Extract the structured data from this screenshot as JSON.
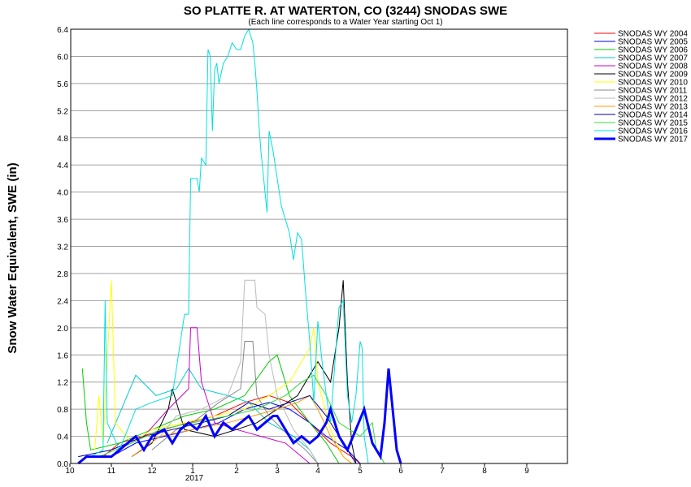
{
  "chart_data": {
    "type": "line",
    "title": "SO PLATTE R. AT WATERTON, CO (3244) SNODAS SWE",
    "subtitle": "(Each line corresponds to a Water Year starting Oct 1)",
    "ylabel": "Snow Water Equivalent, SWE (in)",
    "xlabel": "",
    "ylim": [
      0,
      6.4
    ],
    "xlim": [
      10,
      9.9
    ],
    "y_ticks": [
      "0.0",
      "0.4",
      "0.8",
      "1.2",
      "1.6",
      "2.0",
      "2.4",
      "2.8",
      "3.2",
      "3.6",
      "4.0",
      "4.4",
      "4.8",
      "5.2",
      "5.6",
      "6.0",
      "6.4"
    ],
    "x_ticks": [
      "10",
      "11",
      "12",
      "1",
      "2",
      "3",
      "4",
      "5",
      "6",
      "7",
      "8",
      "9"
    ],
    "x_year_label": "2017",
    "grid": "horizontal",
    "legend_position": "right",
    "series": [
      {
        "name": "SNODAS WY 2004",
        "color": "#ff0000",
        "width": 1,
        "points": [
          [
            10.8,
            0.1
          ],
          [
            11.2,
            0.3
          ],
          [
            12.3,
            0.5
          ],
          [
            12.9,
            0.6
          ],
          [
            1.5,
            0.7
          ],
          [
            2.2,
            0.9
          ],
          [
            2.8,
            1.0
          ],
          [
            3.3,
            0.9
          ],
          [
            3.8,
            0.6
          ],
          [
            4.3,
            0.3
          ],
          [
            4.8,
            0.1
          ],
          [
            5.0,
            0
          ]
        ]
      },
      {
        "name": "SNODAS WY 2005",
        "color": "#0000ff",
        "width": 1,
        "points": [
          [
            11.0,
            0.1
          ],
          [
            11.6,
            0.3
          ],
          [
            12.3,
            0.4
          ],
          [
            1.0,
            0.5
          ],
          [
            1.6,
            0.6
          ],
          [
            2.2,
            0.8
          ],
          [
            2.8,
            0.9
          ],
          [
            3.3,
            0.8
          ],
          [
            3.8,
            0.6
          ],
          [
            4.2,
            0.4
          ],
          [
            4.7,
            0.2
          ],
          [
            5.0,
            0
          ]
        ]
      },
      {
        "name": "SNODAS WY 2006",
        "color": "#00cc00",
        "width": 1,
        "points": [
          [
            10.3,
            1.4
          ],
          [
            10.4,
            0.6
          ],
          [
            10.5,
            0.2
          ],
          [
            11.2,
            0.3
          ],
          [
            12.0,
            0.5
          ],
          [
            12.8,
            0.7
          ],
          [
            1.5,
            0.8
          ],
          [
            2.2,
            1.0
          ],
          [
            2.8,
            1.5
          ],
          [
            3.0,
            1.6
          ],
          [
            3.3,
            1.0
          ],
          [
            3.8,
            0.6
          ],
          [
            4.2,
            0.3
          ],
          [
            4.5,
            0
          ]
        ]
      },
      {
        "name": "SNODAS WY 2007",
        "color": "#00cccc",
        "width": 1,
        "points": [
          [
            10.9,
            0.3
          ],
          [
            11.6,
            1.3
          ],
          [
            12.1,
            1.0
          ],
          [
            12.6,
            1.1
          ],
          [
            12.9,
            1.4
          ],
          [
            1.2,
            1.1
          ],
          [
            1.8,
            1.0
          ],
          [
            2.3,
            0.9
          ],
          [
            2.8,
            0.6
          ],
          [
            3.4,
            0.4
          ],
          [
            3.8,
            0.2
          ],
          [
            4.0,
            0
          ]
        ]
      },
      {
        "name": "SNODAS WY 2008",
        "color": "#cc00cc",
        "width": 1,
        "points": [
          [
            11.0,
            0.2
          ],
          [
            11.8,
            0.4
          ],
          [
            12.4,
            0.8
          ],
          [
            12.9,
            1.1
          ],
          [
            12.95,
            2.0
          ],
          [
            1.1,
            2.0
          ],
          [
            1.2,
            1.2
          ],
          [
            1.5,
            0.6
          ],
          [
            2.0,
            0.5
          ],
          [
            2.6,
            0.4
          ],
          [
            3.2,
            0.3
          ],
          [
            3.6,
            0.1
          ],
          [
            3.8,
            0
          ]
        ]
      },
      {
        "name": "SNODAS WY 2009",
        "color": "#000000",
        "width": 1,
        "points": [
          [
            11.5,
            0.1
          ],
          [
            12.0,
            0.3
          ],
          [
            12.4,
            0.8
          ],
          [
            12.5,
            1.1
          ],
          [
            12.8,
            0.5
          ],
          [
            1.5,
            0.4
          ],
          [
            2.0,
            0.5
          ],
          [
            2.5,
            0.6
          ],
          [
            3.0,
            0.8
          ],
          [
            3.5,
            1.0
          ],
          [
            4.0,
            1.5
          ],
          [
            4.3,
            1.2
          ],
          [
            4.5,
            2.0
          ],
          [
            4.6,
            2.7
          ],
          [
            4.7,
            1.2
          ],
          [
            4.8,
            0.3
          ],
          [
            4.9,
            0
          ]
        ]
      },
      {
        "name": "SNODAS WY 2010",
        "color": "#ffff00",
        "width": 1,
        "points": [
          [
            10.6,
            0.2
          ],
          [
            10.7,
            1.0
          ],
          [
            10.8,
            0.3
          ],
          [
            11.0,
            2.7
          ],
          [
            11.1,
            0.6
          ],
          [
            11.5,
            0.3
          ],
          [
            12.0,
            0.5
          ],
          [
            12.8,
            0.6
          ],
          [
            1.5,
            0.7
          ],
          [
            2.2,
            0.8
          ],
          [
            2.8,
            1.0
          ],
          [
            3.3,
            1.2
          ],
          [
            3.8,
            1.7
          ],
          [
            3.9,
            2.0
          ],
          [
            4.0,
            1.2
          ],
          [
            4.3,
            0.5
          ],
          [
            4.6,
            0.1
          ],
          [
            4.8,
            0
          ]
        ]
      },
      {
        "name": "SNODAS WY 2011",
        "color": "#888888",
        "width": 1,
        "points": [
          [
            12.0,
            0.2
          ],
          [
            12.6,
            0.5
          ],
          [
            1.0,
            0.6
          ],
          [
            1.6,
            0.9
          ],
          [
            2.1,
            1.1
          ],
          [
            2.2,
            1.8
          ],
          [
            2.4,
            1.8
          ],
          [
            2.5,
            1.0
          ],
          [
            2.8,
            0.7
          ],
          [
            3.3,
            0.4
          ],
          [
            3.7,
            0.2
          ],
          [
            4.0,
            0
          ]
        ]
      },
      {
        "name": "SNODAS WY 2012",
        "color": "#bbbbbb",
        "width": 1,
        "points": [
          [
            12.2,
            0.4
          ],
          [
            12.6,
            0.7
          ],
          [
            1.2,
            0.8
          ],
          [
            1.8,
            1.0
          ],
          [
            2.1,
            1.5
          ],
          [
            2.2,
            2.7
          ],
          [
            2.45,
            2.7
          ],
          [
            2.5,
            2.3
          ],
          [
            2.7,
            2.2
          ],
          [
            2.8,
            1.6
          ],
          [
            3.0,
            1.0
          ],
          [
            3.4,
            0.5
          ],
          [
            3.8,
            0.2
          ],
          [
            4.0,
            0
          ]
        ]
      },
      {
        "name": "SNODAS WY 2013",
        "color": "#ff9900",
        "width": 1,
        "points": [
          [
            11.5,
            0.1
          ],
          [
            12.2,
            0.4
          ],
          [
            1.0,
            0.5
          ],
          [
            1.8,
            0.6
          ],
          [
            2.4,
            0.7
          ],
          [
            3.0,
            0.8
          ],
          [
            3.5,
            0.9
          ],
          [
            3.8,
            1.0
          ],
          [
            4.0,
            0.8
          ],
          [
            4.3,
            0.4
          ],
          [
            4.6,
            0.1
          ],
          [
            4.8,
            0
          ]
        ]
      },
      {
        "name": "SNODAS WY 2014",
        "color": "#000099",
        "width": 1,
        "points": [
          [
            10.2,
            0.1
          ],
          [
            11.0,
            0.2
          ],
          [
            11.8,
            0.4
          ],
          [
            12.5,
            0.5
          ],
          [
            1.2,
            0.6
          ],
          [
            1.8,
            0.7
          ],
          [
            2.3,
            0.9
          ],
          [
            2.8,
            0.8
          ],
          [
            3.3,
            0.9
          ],
          [
            3.8,
            1.0
          ],
          [
            4.2,
            0.7
          ],
          [
            4.6,
            0.3
          ],
          [
            4.9,
            0
          ]
        ]
      },
      {
        "name": "SNODAS WY 2015",
        "color": "#33dd33",
        "width": 1,
        "points": [
          [
            10.7,
            0.1
          ],
          [
            11.5,
            0.3
          ],
          [
            12.2,
            0.5
          ],
          [
            1.0,
            0.6
          ],
          [
            1.8,
            0.7
          ],
          [
            2.5,
            0.8
          ],
          [
            3.2,
            1.0
          ],
          [
            3.6,
            1.2
          ],
          [
            3.9,
            1.3
          ],
          [
            4.2,
            1.0
          ],
          [
            4.5,
            0.6
          ],
          [
            5.0,
            0.4
          ],
          [
            5.3,
            0.6
          ],
          [
            5.4,
            0.2
          ],
          [
            5.6,
            0
          ]
        ]
      },
      {
        "name": "SNODAS WY 2016",
        "color": "#00e0e0",
        "width": 1,
        "points": [
          [
            10.5,
            0.1
          ],
          [
            10.8,
            0.2
          ],
          [
            10.85,
            2.4
          ],
          [
            10.9,
            0.6
          ],
          [
            11.2,
            0.2
          ],
          [
            11.6,
            0.8
          ],
          [
            12.0,
            0.9
          ],
          [
            12.5,
            1.0
          ],
          [
            12.8,
            2.2
          ],
          [
            12.9,
            2.2
          ],
          [
            12.95,
            4.2
          ],
          [
            1.1,
            4.2
          ],
          [
            1.15,
            4.0
          ],
          [
            1.2,
            4.5
          ],
          [
            1.3,
            4.4
          ],
          [
            1.35,
            6.1
          ],
          [
            1.4,
            6.0
          ],
          [
            1.45,
            4.9
          ],
          [
            1.5,
            5.8
          ],
          [
            1.55,
            5.9
          ],
          [
            1.6,
            5.6
          ],
          [
            1.7,
            5.9
          ],
          [
            1.8,
            6.0
          ],
          [
            1.9,
            6.2
          ],
          [
            2.0,
            6.1
          ],
          [
            2.1,
            6.1
          ],
          [
            2.15,
            6.2
          ],
          [
            2.2,
            6.3
          ],
          [
            2.3,
            6.4
          ],
          [
            2.35,
            6.3
          ],
          [
            2.4,
            6.2
          ],
          [
            2.45,
            5.9
          ],
          [
            2.5,
            5.5
          ],
          [
            2.55,
            5.0
          ],
          [
            2.6,
            4.6
          ],
          [
            2.7,
            4.0
          ],
          [
            2.75,
            3.7
          ],
          [
            2.8,
            4.9
          ],
          [
            2.9,
            4.6
          ],
          [
            3.0,
            4.2
          ],
          [
            3.1,
            3.8
          ],
          [
            3.2,
            3.6
          ],
          [
            3.3,
            3.4
          ],
          [
            3.35,
            3.2
          ],
          [
            3.4,
            3.0
          ],
          [
            3.45,
            3.2
          ],
          [
            3.5,
            3.4
          ],
          [
            3.6,
            3.3
          ],
          [
            3.7,
            2.5
          ],
          [
            3.8,
            1.8
          ],
          [
            3.9,
            0.9
          ],
          [
            4.0,
            2.1
          ],
          [
            4.1,
            1.5
          ],
          [
            4.2,
            1.0
          ],
          [
            4.3,
            0.6
          ],
          [
            4.5,
            2.3
          ],
          [
            4.6,
            2.4
          ],
          [
            4.7,
            1.0
          ],
          [
            4.8,
            0.6
          ],
          [
            4.9,
            1.0
          ],
          [
            5.0,
            1.8
          ],
          [
            5.05,
            1.7
          ],
          [
            5.1,
            0.4
          ],
          [
            5.2,
            0
          ]
        ]
      },
      {
        "name": "SNODAS WY 2017",
        "color": "#0000ff",
        "width": 3,
        "points": [
          [
            10.2,
            0.0
          ],
          [
            10.4,
            0.1
          ],
          [
            11.0,
            0.1
          ],
          [
            11.2,
            0.2
          ],
          [
            11.6,
            0.4
          ],
          [
            11.8,
            0.2
          ],
          [
            12.0,
            0.4
          ],
          [
            12.3,
            0.5
          ],
          [
            12.5,
            0.3
          ],
          [
            12.7,
            0.5
          ],
          [
            12.9,
            0.6
          ],
          [
            1.1,
            0.5
          ],
          [
            1.3,
            0.7
          ],
          [
            1.5,
            0.4
          ],
          [
            1.7,
            0.6
          ],
          [
            1.9,
            0.5
          ],
          [
            2.1,
            0.6
          ],
          [
            2.3,
            0.7
          ],
          [
            2.5,
            0.5
          ],
          [
            2.7,
            0.6
          ],
          [
            2.9,
            0.7
          ],
          [
            3.0,
            0.7
          ],
          [
            3.2,
            0.5
          ],
          [
            3.4,
            0.3
          ],
          [
            3.6,
            0.4
          ],
          [
            3.8,
            0.3
          ],
          [
            4.0,
            0.4
          ],
          [
            4.2,
            0.6
          ],
          [
            4.3,
            0.8
          ],
          [
            4.5,
            0.4
          ],
          [
            4.7,
            0.2
          ],
          [
            4.9,
            0.5
          ],
          [
            5.1,
            0.8
          ],
          [
            5.3,
            0.3
          ],
          [
            5.5,
            0.1
          ],
          [
            5.6,
            0.6
          ],
          [
            5.7,
            1.4
          ],
          [
            5.8,
            0.8
          ],
          [
            5.9,
            0.2
          ],
          [
            6.0,
            0.0
          ]
        ]
      }
    ]
  }
}
